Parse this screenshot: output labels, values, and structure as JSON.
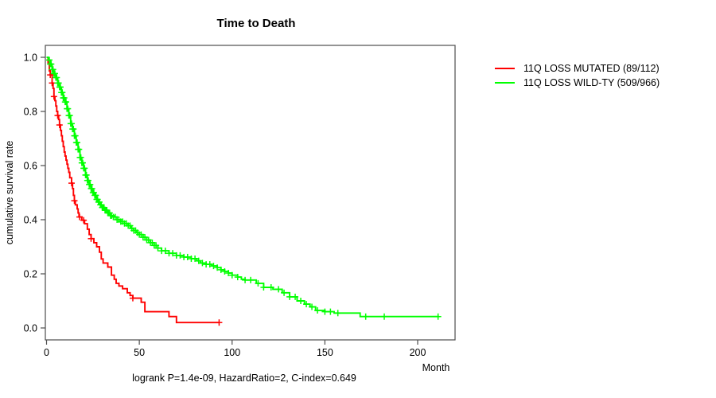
{
  "chart_data": {
    "type": "line",
    "subtype": "kaplan-meier-step",
    "title": "Time to Death",
    "xlabel": "Month",
    "ylabel": "cumulative survival rate",
    "annotation": "logrank P=1.4e-09, HazardRatio=2, C-index=0.649",
    "xlim": [
      0,
      220
    ],
    "ylim": [
      0.0,
      1.0
    ],
    "xticks": [
      "0",
      "50",
      "100",
      "150",
      "200"
    ],
    "yticks": [
      "0.0",
      "0.2",
      "0.4",
      "0.6",
      "0.8",
      "1.0"
    ],
    "grid": false,
    "legend_position": "right-outside",
    "series": [
      {
        "name": "11Q LOSS MUTATED (89/112)",
        "color": "#ff0000",
        "steps": [
          [
            0,
            1.0
          ],
          [
            0.8,
            0.98
          ],
          [
            1.5,
            0.95
          ],
          [
            2,
            0.935
          ],
          [
            3,
            0.905
          ],
          [
            3.5,
            0.885
          ],
          [
            4,
            0.855
          ],
          [
            4.5,
            0.84
          ],
          [
            5,
            0.82
          ],
          [
            5.5,
            0.8
          ],
          [
            6,
            0.785
          ],
          [
            6.5,
            0.77
          ],
          [
            7,
            0.75
          ],
          [
            7.5,
            0.73
          ],
          [
            8,
            0.71
          ],
          [
            8.5,
            0.69
          ],
          [
            9,
            0.67
          ],
          [
            9.5,
            0.65
          ],
          [
            10,
            0.635
          ],
          [
            10.5,
            0.62
          ],
          [
            11,
            0.605
          ],
          [
            11.5,
            0.59
          ],
          [
            12,
            0.575
          ],
          [
            12.5,
            0.555
          ],
          [
            13.5,
            0.535
          ],
          [
            14,
            0.515
          ],
          [
            14.5,
            0.49
          ],
          [
            15,
            0.47
          ],
          [
            15.5,
            0.455
          ],
          [
            16.5,
            0.44
          ],
          [
            17,
            0.425
          ],
          [
            17.5,
            0.41
          ],
          [
            19,
            0.398
          ],
          [
            20.5,
            0.385
          ],
          [
            22,
            0.365
          ],
          [
            23,
            0.345
          ],
          [
            24,
            0.33
          ],
          [
            25.5,
            0.315
          ],
          [
            27,
            0.3
          ],
          [
            28.5,
            0.28
          ],
          [
            29.5,
            0.255
          ],
          [
            30.5,
            0.24
          ],
          [
            33,
            0.225
          ],
          [
            35,
            0.195
          ],
          [
            36.5,
            0.18
          ],
          [
            37.5,
            0.165
          ],
          [
            39,
            0.155
          ],
          [
            41,
            0.145
          ],
          [
            43.5,
            0.13
          ],
          [
            45,
            0.12
          ],
          [
            46.5,
            0.11
          ],
          [
            51,
            0.095
          ],
          [
            53,
            0.06
          ],
          [
            66,
            0.042
          ],
          [
            70,
            0.02
          ]
        ],
        "end_month": 93,
        "censor_times": [
          2,
          3,
          4,
          6,
          7,
          13.5,
          15,
          17.8,
          20,
          24,
          46.5,
          93
        ]
      },
      {
        "name": "11Q LOSS WILD-TY (509/966)",
        "color": "#00ff00",
        "steps": [
          [
            0,
            1.0
          ],
          [
            1,
            0.99
          ],
          [
            2,
            0.975
          ],
          [
            3,
            0.955
          ],
          [
            4,
            0.94
          ],
          [
            5,
            0.925
          ],
          [
            6,
            0.905
          ],
          [
            7,
            0.89
          ],
          [
            8,
            0.87
          ],
          [
            9,
            0.85
          ],
          [
            10,
            0.835
          ],
          [
            11,
            0.81
          ],
          [
            12,
            0.785
          ],
          [
            13,
            0.755
          ],
          [
            14,
            0.735
          ],
          [
            15,
            0.71
          ],
          [
            16,
            0.685
          ],
          [
            17,
            0.66
          ],
          [
            18,
            0.63
          ],
          [
            19,
            0.61
          ],
          [
            20,
            0.59
          ],
          [
            21,
            0.565
          ],
          [
            22,
            0.545
          ],
          [
            23,
            0.53
          ],
          [
            24,
            0.515
          ],
          [
            25,
            0.5
          ],
          [
            26,
            0.49
          ],
          [
            27,
            0.475
          ],
          [
            28,
            0.465
          ],
          [
            29,
            0.455
          ],
          [
            30,
            0.445
          ],
          [
            31.5,
            0.435
          ],
          [
            33,
            0.425
          ],
          [
            34.5,
            0.415
          ],
          [
            36,
            0.41
          ],
          [
            38,
            0.4
          ],
          [
            40,
            0.393
          ],
          [
            42,
            0.386
          ],
          [
            44,
            0.378
          ],
          [
            45.5,
            0.368
          ],
          [
            47,
            0.36
          ],
          [
            48.5,
            0.352
          ],
          [
            50,
            0.345
          ],
          [
            52,
            0.335
          ],
          [
            54,
            0.325
          ],
          [
            56,
            0.315
          ],
          [
            58,
            0.305
          ],
          [
            60,
            0.295
          ],
          [
            62,
            0.285
          ],
          [
            66,
            0.276
          ],
          [
            70,
            0.268
          ],
          [
            74,
            0.262
          ],
          [
            78,
            0.256
          ],
          [
            81,
            0.248
          ],
          [
            83,
            0.24
          ],
          [
            86,
            0.235
          ],
          [
            89,
            0.229
          ],
          [
            92,
            0.223
          ],
          [
            94,
            0.215
          ],
          [
            96,
            0.209
          ],
          [
            98,
            0.203
          ],
          [
            100,
            0.195
          ],
          [
            103,
            0.188
          ],
          [
            105,
            0.18
          ],
          [
            107,
            0.177
          ],
          [
            113,
            0.165
          ],
          [
            117,
            0.15
          ],
          [
            122,
            0.143
          ],
          [
            127,
            0.13
          ],
          [
            131,
            0.115
          ],
          [
            135,
            0.1
          ],
          [
            139,
            0.088
          ],
          [
            142,
            0.078
          ],
          [
            145,
            0.065
          ],
          [
            150,
            0.06
          ],
          [
            155,
            0.055
          ],
          [
            169,
            0.042
          ]
        ],
        "end_month": 211.5,
        "censor_times": [
          1.5,
          2,
          2.5,
          3,
          3.5,
          4,
          4.5,
          5,
          5.5,
          6,
          6.5,
          7,
          7.5,
          8,
          8.5,
          9,
          9.5,
          10,
          10.5,
          11,
          11.5,
          12,
          12.5,
          13,
          13.5,
          14,
          14.5,
          15,
          15.5,
          16,
          16.5,
          17,
          17.5,
          18,
          18.5,
          19,
          19.5,
          20,
          20.5,
          21,
          21.5,
          22,
          22.5,
          23,
          23.5,
          24,
          24.5,
          25,
          25.5,
          26,
          26.5,
          27,
          27.5,
          28,
          28.5,
          29,
          29.5,
          30,
          30.5,
          31,
          31.5,
          32,
          32.5,
          33,
          33.5,
          34,
          34.5,
          35,
          36,
          37,
          38,
          39,
          40,
          41,
          42,
          43,
          44,
          45,
          46,
          47,
          48,
          49,
          50,
          51,
          52,
          53,
          54,
          55,
          56,
          57,
          58,
          59,
          60,
          62,
          64,
          66,
          68,
          70,
          72,
          74,
          76,
          78,
          80,
          82,
          84,
          86,
          88,
          90,
          92,
          94,
          96,
          98,
          100,
          103,
          107,
          110,
          114,
          117,
          121,
          125,
          128,
          131,
          134,
          137,
          140,
          143,
          146,
          150,
          153,
          157,
          172,
          182,
          211
        ]
      }
    ]
  }
}
